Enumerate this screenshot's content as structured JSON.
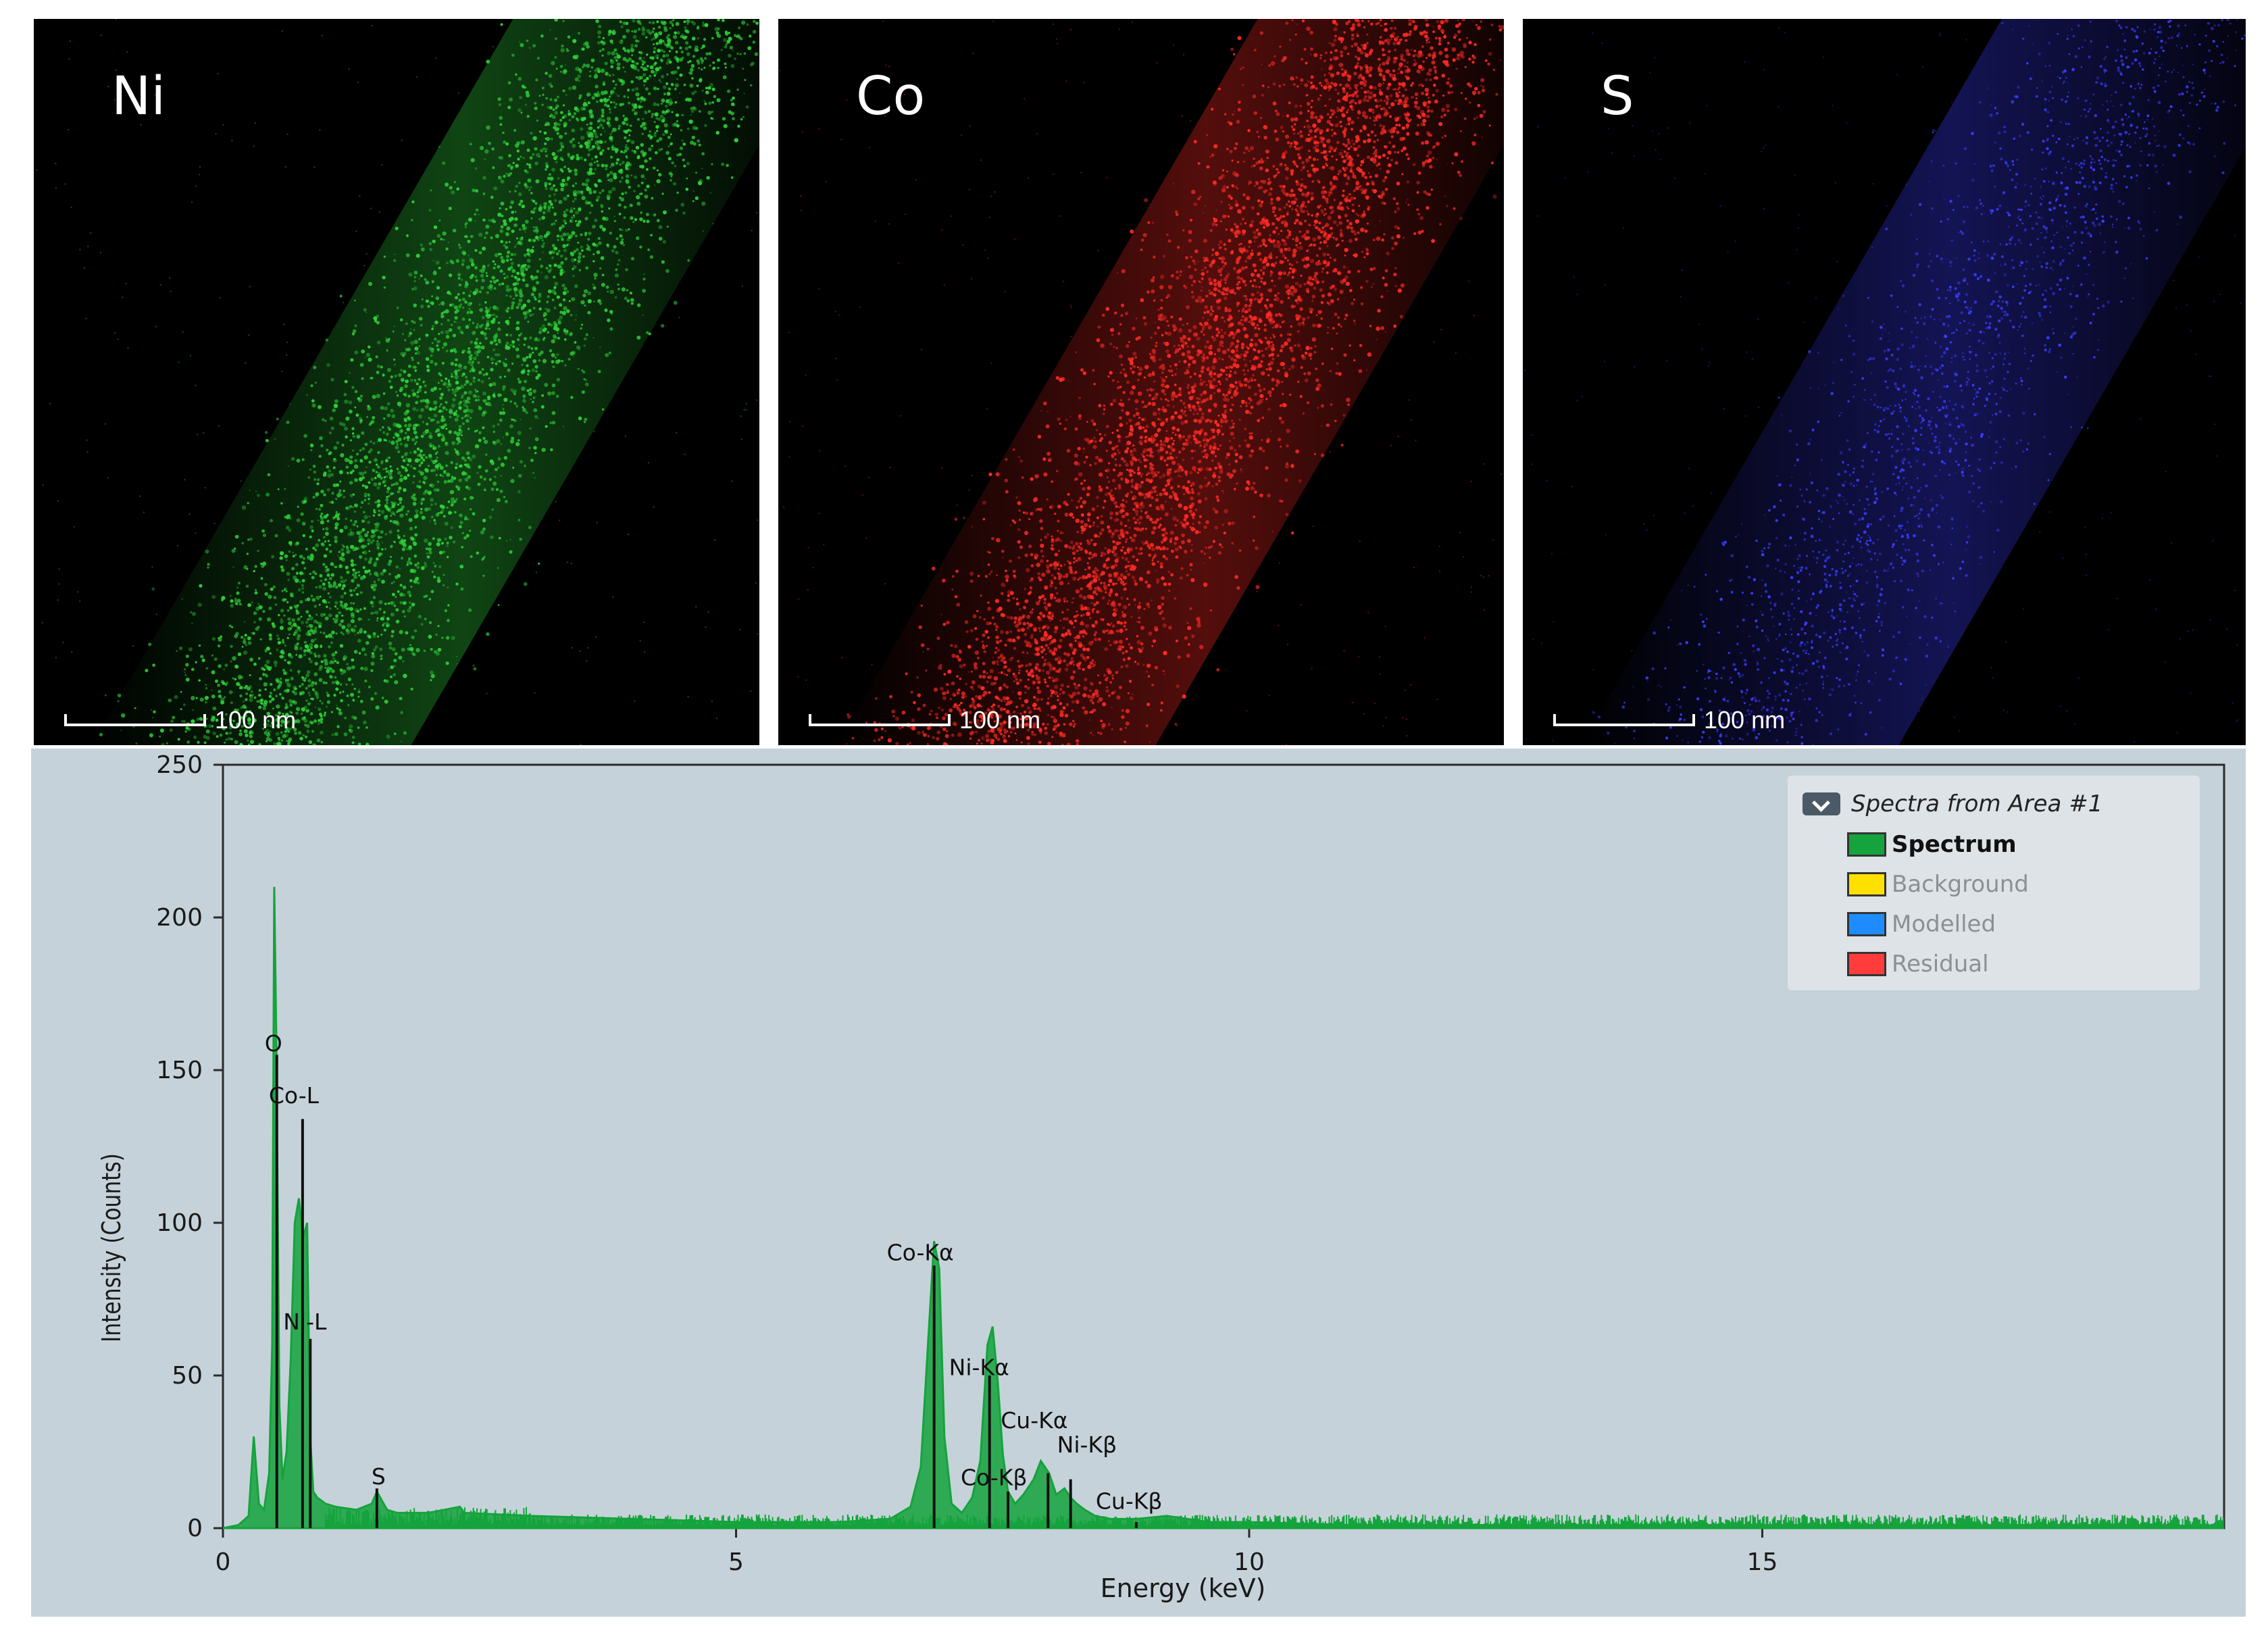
{
  "maps": [
    {
      "element": "Ni",
      "color": "#2fd03a",
      "scale_label": "100 nm"
    },
    {
      "element": "Co",
      "color": "#ff2a24",
      "scale_label": "100 nm"
    },
    {
      "element": "S",
      "color": "#3b3cff",
      "scale_label": "100 nm"
    }
  ],
  "legend": {
    "title": "Spectra from Area #1",
    "items": [
      {
        "label": "Spectrum",
        "color": "#14a33c",
        "active": true
      },
      {
        "label": "Background",
        "color": "#ffe000",
        "active": false
      },
      {
        "label": "Modelled",
        "color": "#1e8cff",
        "active": false
      },
      {
        "label": "Residual",
        "color": "#ff3b3b",
        "active": false
      }
    ]
  },
  "chart_data": {
    "type": "line",
    "title": "",
    "xlabel": "Energy (keV)",
    "ylabel": "Intensity (Counts)",
    "xlim": [
      0,
      19.5
    ],
    "ylim": [
      0,
      250
    ],
    "xticks": [
      0,
      5,
      10,
      15
    ],
    "yticks": [
      0,
      50,
      100,
      150,
      200,
      250
    ],
    "series": [
      {
        "name": "Spectrum",
        "color": "#14a33c",
        "x": [
          0.0,
          0.15,
          0.25,
          0.3,
          0.35,
          0.4,
          0.45,
          0.48,
          0.5,
          0.52,
          0.55,
          0.58,
          0.62,
          0.66,
          0.7,
          0.74,
          0.78,
          0.82,
          0.85,
          0.88,
          0.92,
          0.96,
          1.0,
          1.1,
          1.3,
          1.45,
          1.5,
          1.55,
          1.6,
          1.7,
          2.0,
          2.31,
          2.35,
          3.0,
          4.0,
          5.0,
          6.0,
          6.5,
          6.7,
          6.8,
          6.87,
          6.93,
          6.98,
          7.03,
          7.1,
          7.2,
          7.3,
          7.38,
          7.45,
          7.5,
          7.55,
          7.6,
          7.65,
          7.72,
          7.8,
          7.9,
          7.97,
          8.05,
          8.12,
          8.2,
          8.26,
          8.32,
          8.4,
          8.5,
          8.65,
          8.9,
          9.2,
          9.6,
          10.0,
          11.0,
          12.0,
          13.0,
          14.0,
          15.0,
          16.0,
          17.0,
          18.0,
          19.0,
          19.5
        ],
        "values": [
          0,
          1,
          4,
          30,
          8,
          6,
          18,
          60,
          210,
          160,
          40,
          16,
          25,
          55,
          100,
          108,
          95,
          100,
          30,
          12,
          10,
          9,
          8,
          7,
          6,
          8,
          12,
          9,
          6,
          5,
          5,
          7,
          5,
          4,
          3,
          2,
          2,
          3,
          7,
          20,
          60,
          94,
          85,
          30,
          8,
          5,
          10,
          22,
          60,
          66,
          48,
          24,
          12,
          8,
          11,
          16,
          22,
          18,
          11,
          13,
          10,
          8,
          6,
          4,
          3,
          3,
          4,
          2,
          2,
          1,
          1,
          1,
          1,
          1,
          1,
          1,
          1,
          1,
          0
        ]
      }
    ],
    "peak_markers": [
      {
        "label": "O",
        "energy": 0.525,
        "height": 155
      },
      {
        "label": "Co-L",
        "energy": 0.776,
        "height": 134
      },
      {
        "label": "Ni-L",
        "energy": 0.851,
        "height": 62
      },
      {
        "label": "S",
        "energy": 1.5,
        "height": 13
      },
      {
        "label": "Co-Kα",
        "energy": 6.93,
        "height": 86
      },
      {
        "label": "Ni-Kα",
        "energy": 7.47,
        "height": 50
      },
      {
        "label": "Co-Kβ",
        "energy": 7.65,
        "height": 12
      },
      {
        "label": "Cu-Kα",
        "energy": 8.04,
        "height": 18
      },
      {
        "label": "Ni-Kβ",
        "energy": 8.26,
        "height": 16
      },
      {
        "label": "Cu-Kβ",
        "energy": 8.9,
        "height": 2
      }
    ]
  }
}
